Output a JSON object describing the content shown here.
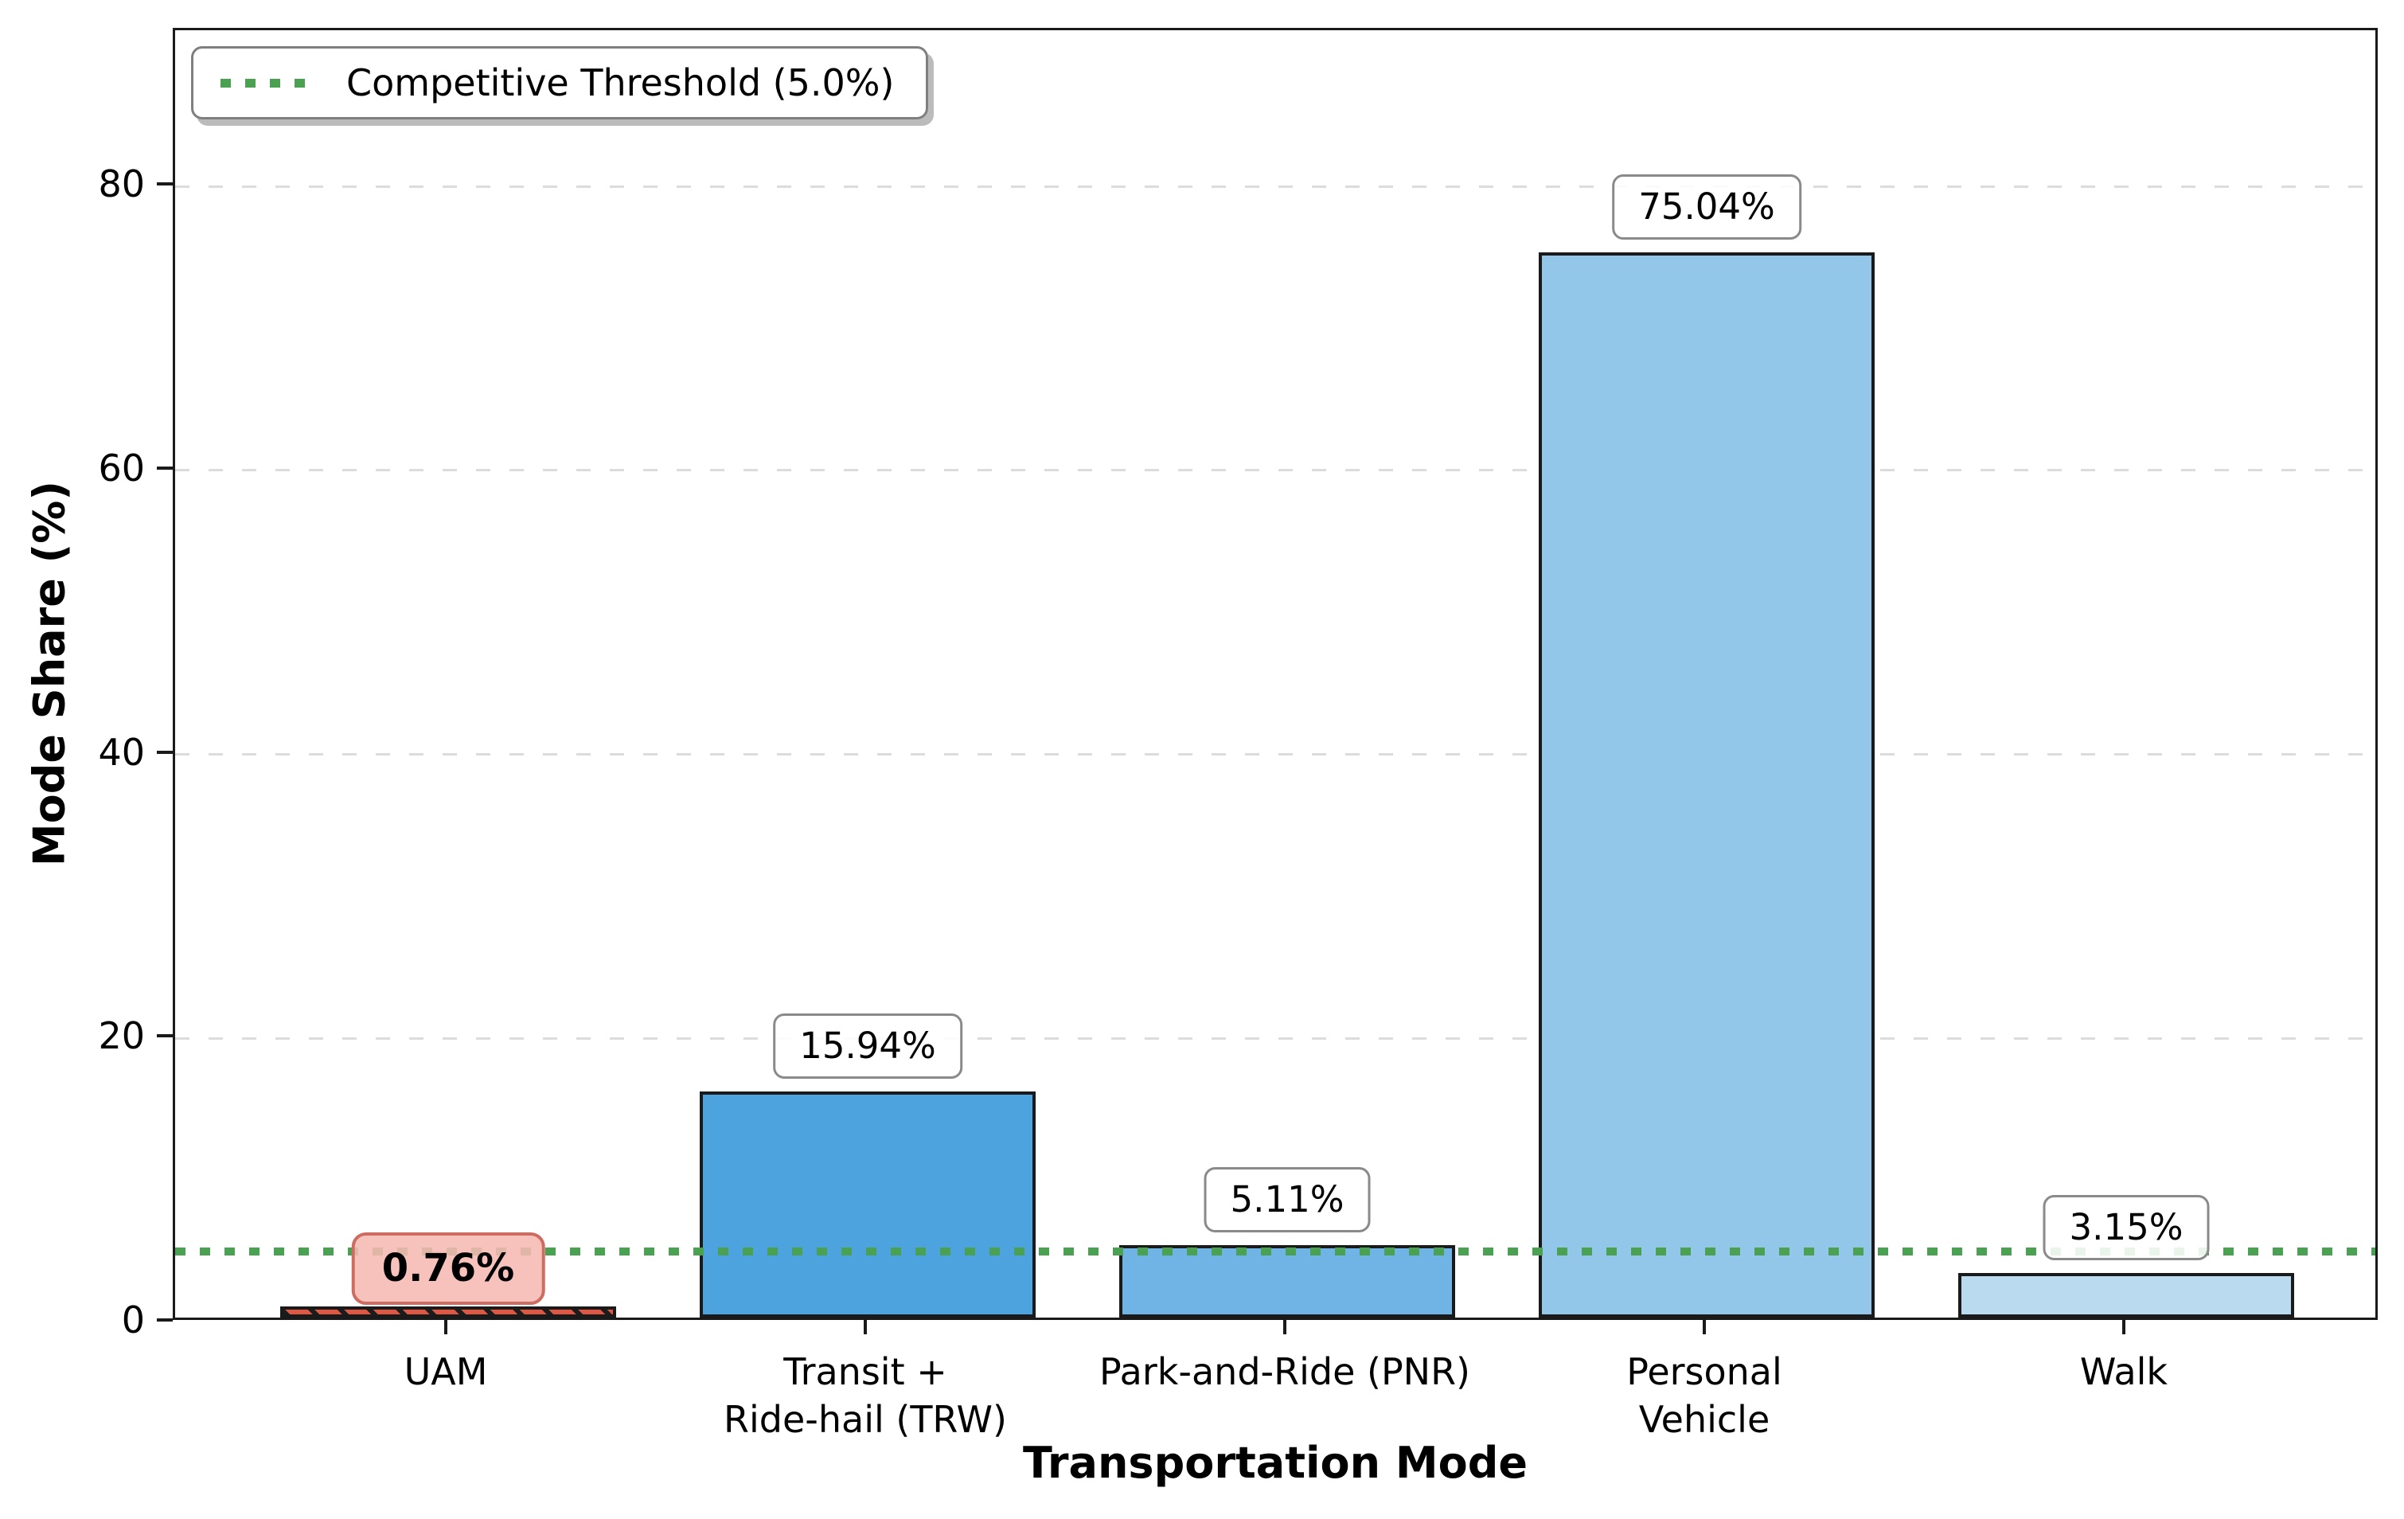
{
  "chart_data": {
    "type": "bar",
    "title": "",
    "xlabel": "Transportation Mode",
    "ylabel": "Mode Share (%)",
    "categories": [
      "UAM",
      "Transit +\nRide-hail (TRW)",
      "Park-and-Ride (PNR)",
      "Personal\nVehicle",
      "Walk"
    ],
    "values": [
      0.76,
      15.94,
      5.11,
      75.04,
      3.15
    ],
    "value_labels": [
      "0.76%",
      "15.94%",
      "5.11%",
      "75.04%",
      "3.15%"
    ],
    "bar_colors": [
      "#dd5743",
      "#4da3de",
      "#70b4e5",
      "#92c7e9",
      "#badaf0"
    ],
    "bar_hatched": [
      true,
      false,
      false,
      false,
      false
    ],
    "highlighted_index": 0,
    "ytick_labels": [
      "0",
      "20",
      "40",
      "60",
      "80"
    ],
    "ytick_values": [
      0,
      20,
      40,
      60,
      80
    ],
    "ylim": [
      0,
      91
    ],
    "grid": {
      "axis": "y",
      "style": "dashed",
      "color": "#dcdcdc"
    },
    "threshold": {
      "value": 5.0,
      "label": "Competitive Threshold (5.0%)",
      "color": "#4aa152",
      "style": "dotted"
    },
    "legend_position": "upper left",
    "colors": {
      "bar_edge": "#1a1a1a",
      "highlight_label_bg": "#f5bab2",
      "highlight_label_border": "#cd6d62",
      "label_box_border": "#8a8a8a",
      "threshold_green": "#4aa152"
    }
  }
}
